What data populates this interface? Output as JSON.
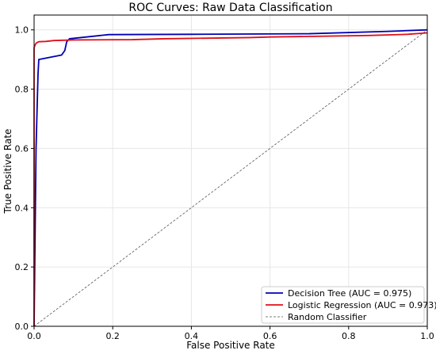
{
  "chart_data": {
    "type": "line",
    "title": "ROC Curves: Raw Data Classification",
    "xlabel": "False Positive Rate",
    "ylabel": "True Positive Rate",
    "xlim": [
      0.0,
      1.0
    ],
    "ylim": [
      0.0,
      1.05
    ],
    "xticks": [
      0.0,
      0.2,
      0.4,
      0.6,
      0.8,
      1.0
    ],
    "yticks": [
      0.0,
      0.2,
      0.4,
      0.6,
      0.8,
      1.0
    ],
    "xtick_labels": [
      "0.0",
      "0.2",
      "0.4",
      "0.6",
      "0.8",
      "1.0"
    ],
    "ytick_labels": [
      "0.0",
      "0.2",
      "0.4",
      "0.6",
      "0.8",
      "1.0"
    ],
    "grid": true,
    "legend_position": "bottom-right",
    "series": [
      {
        "name": "Decision Tree (AUC = 0.975)",
        "color": "#0000b4",
        "style": "solid",
        "x": [
          0.0,
          0.005,
          0.01,
          0.012,
          0.07,
          0.078,
          0.083,
          0.09,
          0.19,
          0.4,
          0.7,
          0.9,
          1.0
        ],
        "y": [
          0.0,
          0.6,
          0.85,
          0.9,
          0.915,
          0.93,
          0.96,
          0.97,
          0.984,
          0.985,
          0.987,
          0.995,
          1.0
        ]
      },
      {
        "name": "Logistic Regression (AUC = 0.973)",
        "color": "#e0101a",
        "style": "solid",
        "x": [
          0.0,
          0.0,
          0.003,
          0.006,
          0.012,
          0.03,
          0.05,
          0.1,
          0.25,
          0.33,
          0.55,
          0.6,
          0.85,
          0.95,
          1.0
        ],
        "y": [
          0.0,
          0.94,
          0.95,
          0.956,
          0.96,
          0.961,
          0.964,
          0.966,
          0.967,
          0.97,
          0.974,
          0.976,
          0.981,
          0.985,
          0.99
        ]
      },
      {
        "name": "Random Classifier",
        "color": "#555555",
        "style": "dashed",
        "x": [
          0.0,
          1.0
        ],
        "y": [
          0.0,
          1.0
        ]
      }
    ]
  }
}
